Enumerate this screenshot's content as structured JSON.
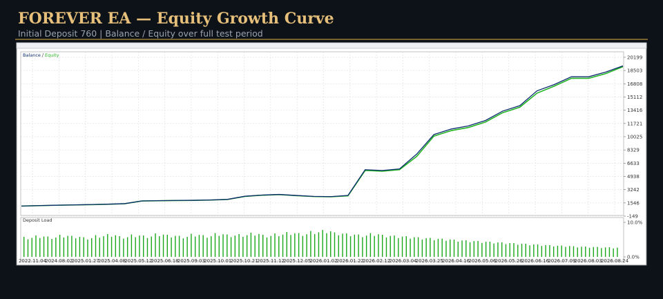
{
  "header": {
    "title": "FOREVER EA — Equity Growth Curve",
    "subtitle": "Initial Deposit 760 | Balance / Equity over full test period"
  },
  "chart_data": [
    {
      "type": "line",
      "series": [
        {
          "name": "Balance",
          "color": "#0b2a6e",
          "values": [
            1145,
            1200,
            1250,
            1290,
            1330,
            1380,
            1450,
            1800,
            1830,
            1860,
            1880,
            1920,
            2000,
            2400,
            2550,
            2630,
            2500,
            2380,
            2350,
            2500,
            5800,
            5700,
            5900,
            7800,
            10300,
            11000,
            11400,
            12100,
            13300,
            14000,
            15900,
            16700,
            17700,
            17700,
            18300,
            19100
          ]
        },
        {
          "name": "Equity",
          "color": "#22b322",
          "values": [
            1140,
            1190,
            1245,
            1280,
            1320,
            1370,
            1440,
            1790,
            1820,
            1850,
            1870,
            1910,
            1990,
            2380,
            2530,
            2610,
            2480,
            2360,
            2330,
            2450,
            5700,
            5600,
            5800,
            7500,
            10100,
            10800,
            11200,
            11900,
            13100,
            13800,
            15600,
            16500,
            17500,
            17500,
            18100,
            19000
          ]
        }
      ],
      "xtick_labels": [
        "2022.11.04",
        "2024.08.02",
        "2025.01.27",
        "2025.04.08",
        "2025.05.12",
        "2025.06.18",
        "2025.09.03",
        "2025.10.01",
        "2025.10.21",
        "2025.11.12",
        "2025.12.05",
        "2026.01.02",
        "2026.01.22",
        "2026.02.12",
        "2026.03.04",
        "2026.03.25",
        "2026.04.16",
        "2026.05.06",
        "2026.05.26",
        "2026.06.16",
        "2026.07.09",
        "2026.08.03",
        "2026.08.24"
      ],
      "ylim": [
        -149,
        20900
      ],
      "yticks": [
        20199,
        18503,
        16808,
        15112,
        13416,
        11721,
        10025,
        8329,
        6633,
        4938,
        3242,
        1546,
        -149
      ],
      "grid": true
    },
    {
      "type": "bar",
      "title": "Deposit Load",
      "color": "#1aa81a",
      "values": [
        5.8,
        6.2,
        5.9,
        6.4,
        6.1,
        5.7,
        6.3,
        6.6,
        6.0,
        6.5,
        6.2,
        6.8,
        6.4,
        6.1,
        6.7,
        6.3,
        6.9,
        6.5,
        6.6,
        7.0,
        6.4,
        6.8,
        7.2,
        6.9,
        7.5,
        7.8,
        7.1,
        6.8,
        6.5,
        6.9,
        6.4,
        6.2,
        6.0,
        5.7,
        5.5,
        5.3,
        5.0,
        4.8,
        4.6,
        4.4,
        4.2,
        4.0,
        3.8,
        3.6,
        3.4,
        3.3,
        3.1,
        3.0,
        2.9,
        2.8
      ],
      "ylim": [
        0,
        10
      ],
      "yticks": [
        {
          "value": 10,
          "label": "10.0%"
        },
        {
          "value": 0,
          "label": "0.0%"
        }
      ]
    }
  ]
}
